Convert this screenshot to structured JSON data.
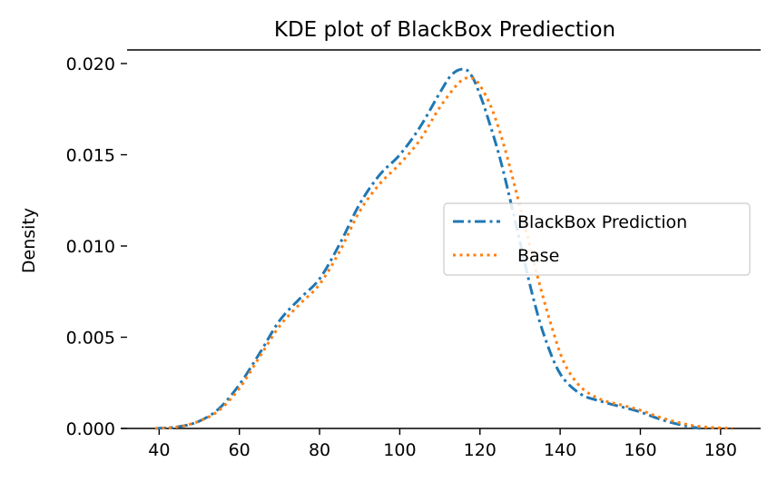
{
  "chart_data": {
    "type": "line",
    "title": "KDE plot of BlackBox Prediection",
    "xlabel": "",
    "ylabel": "Density",
    "xlim": [
      32,
      190
    ],
    "ylim": [
      0,
      0.02
    ],
    "xticks": [
      40,
      60,
      80,
      100,
      120,
      140,
      160,
      180
    ],
    "xtick_labels": [
      "40",
      "60",
      "80",
      "100",
      "120",
      "140",
      "160",
      "180"
    ],
    "yticks": [
      0,
      0.005,
      0.01,
      0.015,
      0.02
    ],
    "ytick_labels": [
      "0.000",
      "0.005",
      "0.010",
      "0.015",
      "0.020"
    ],
    "grid": false,
    "legend_position": "center-right",
    "series": [
      {
        "name": "BlackBox Prediction",
        "color": "#1f77b4",
        "style": "dashdot",
        "x": [
          39,
          45,
          50,
          55,
          60,
          65,
          70,
          75,
          80,
          85,
          90,
          95,
          100,
          105,
          110,
          113,
          116,
          118,
          120,
          122,
          125,
          128,
          130,
          133,
          136,
          140,
          145,
          150,
          155,
          160,
          165,
          170,
          175
        ],
        "y": [
          0.0,
          0.0001,
          0.0004,
          0.0011,
          0.0024,
          0.0041,
          0.0059,
          0.0071,
          0.0082,
          0.0101,
          0.0123,
          0.0139,
          0.015,
          0.0165,
          0.0184,
          0.0194,
          0.0197,
          0.0193,
          0.0183,
          0.017,
          0.0148,
          0.0121,
          0.0102,
          0.0074,
          0.0051,
          0.003,
          0.0019,
          0.0015,
          0.0012,
          0.0009,
          0.0005,
          0.0002,
          0.0
        ]
      },
      {
        "name": "Base",
        "color": "#ff7f0e",
        "style": "dotted",
        "x": [
          39,
          45,
          50,
          55,
          60,
          65,
          70,
          75,
          80,
          85,
          90,
          95,
          100,
          105,
          110,
          115,
          118,
          120,
          123,
          126,
          129,
          132,
          135,
          138,
          141,
          145,
          150,
          155,
          160,
          165,
          170,
          175,
          183
        ],
        "y": [
          0.0,
          0.0001,
          0.0004,
          0.001,
          0.0022,
          0.0039,
          0.0056,
          0.0068,
          0.0079,
          0.0097,
          0.0119,
          0.0134,
          0.0145,
          0.0158,
          0.0176,
          0.019,
          0.0192,
          0.0188,
          0.0175,
          0.0155,
          0.013,
          0.0104,
          0.0078,
          0.0055,
          0.0036,
          0.0023,
          0.0016,
          0.0013,
          0.001,
          0.0006,
          0.0003,
          0.0001,
          0.0
        ]
      }
    ]
  }
}
